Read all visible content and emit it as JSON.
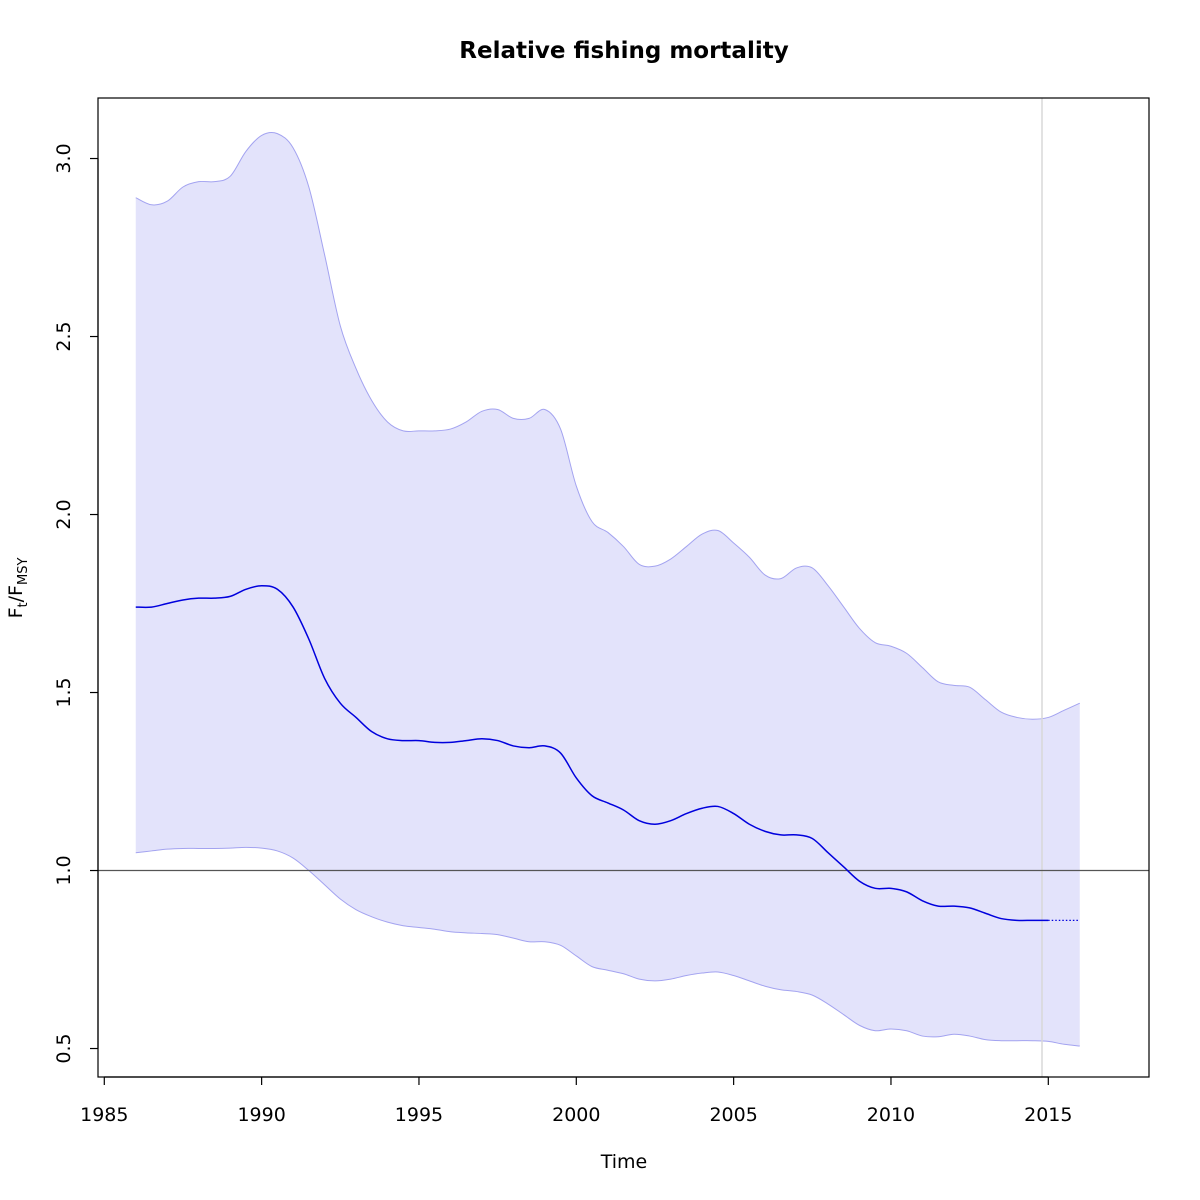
{
  "chart_data": {
    "type": "line",
    "title": "Relative fishing mortality",
    "xlabel": "Time",
    "ylabel": {
      "main": "F",
      "sub1": "t",
      "slash": "/F",
      "sub2": "MSY"
    },
    "xlim": [
      1984.8,
      2018.2
    ],
    "ylim": [
      0.42,
      3.17
    ],
    "xticks": [
      1985,
      1990,
      1995,
      2000,
      2005,
      2010,
      2015
    ],
    "xtick_labels": [
      "1985",
      "1990",
      "1995",
      "2000",
      "2005",
      "2010",
      "2015"
    ],
    "yticks": [
      0.5,
      1.0,
      1.5,
      2.0,
      2.5,
      3.0
    ],
    "ytick_labels": [
      "0.5",
      "1.0",
      "1.5",
      "2.0",
      "2.5",
      "3.0"
    ],
    "reference_hline": 1.0,
    "reference_vline": 2014.8,
    "colors": {
      "line": "#0000dd",
      "band_fill": "#e3e3fb",
      "band_edge": "#a3a3f0",
      "hline": "#555555",
      "vline": "#d8d8d8"
    },
    "series": [
      {
        "role": "estimate",
        "x": [
          1986.0,
          1986.5,
          1987.0,
          1987.5,
          1988.0,
          1988.5,
          1989.0,
          1989.5,
          1990.0,
          1990.5,
          1991.0,
          1991.5,
          1992.0,
          1992.5,
          1993.0,
          1993.5,
          1994.0,
          1994.5,
          1995.0,
          1995.5,
          1996.0,
          1996.5,
          1997.0,
          1997.5,
          1998.0,
          1998.5,
          1999.0,
          1999.5,
          2000.0,
          2000.5,
          2001.0,
          2001.5,
          2002.0,
          2002.5,
          2003.0,
          2003.5,
          2004.0,
          2004.5,
          2005.0,
          2005.5,
          2006.0,
          2006.5,
          2007.0,
          2007.5,
          2008.0,
          2008.5,
          2009.0,
          2009.5,
          2010.0,
          2010.5,
          2011.0,
          2011.5,
          2012.0,
          2012.5,
          2013.0,
          2013.5,
          2014.0,
          2014.5,
          2015.0
        ],
        "y": [
          1.74,
          1.74,
          1.75,
          1.76,
          1.765,
          1.765,
          1.77,
          1.79,
          1.8,
          1.79,
          1.74,
          1.65,
          1.54,
          1.47,
          1.43,
          1.39,
          1.37,
          1.365,
          1.365,
          1.36,
          1.36,
          1.365,
          1.37,
          1.365,
          1.35,
          1.345,
          1.35,
          1.33,
          1.26,
          1.21,
          1.19,
          1.17,
          1.14,
          1.13,
          1.14,
          1.16,
          1.175,
          1.18,
          1.16,
          1.13,
          1.11,
          1.1,
          1.1,
          1.09,
          1.05,
          1.01,
          0.97,
          0.95,
          0.95,
          0.94,
          0.915,
          0.9,
          0.9,
          0.895,
          0.88,
          0.865,
          0.86,
          0.86,
          0.86
        ]
      },
      {
        "role": "prediction",
        "x": [
          2015.0,
          2016.0
        ],
        "y": [
          0.86,
          0.86
        ]
      },
      {
        "role": "upper_ci",
        "x": [
          1986.0,
          1986.5,
          1987.0,
          1987.5,
          1988.0,
          1988.5,
          1989.0,
          1989.5,
          1990.0,
          1990.5,
          1991.0,
          1991.5,
          1992.0,
          1992.5,
          1993.0,
          1993.5,
          1994.0,
          1994.5,
          1995.0,
          1995.5,
          1996.0,
          1996.5,
          1997.0,
          1997.5,
          1998.0,
          1998.5,
          1999.0,
          1999.5,
          2000.0,
          2000.5,
          2001.0,
          2001.5,
          2002.0,
          2002.5,
          2003.0,
          2003.5,
          2004.0,
          2004.5,
          2005.0,
          2005.5,
          2006.0,
          2006.5,
          2007.0,
          2007.5,
          2008.0,
          2008.5,
          2009.0,
          2009.5,
          2010.0,
          2010.5,
          2011.0,
          2011.5,
          2012.0,
          2012.5,
          2013.0,
          2013.5,
          2014.0,
          2014.5,
          2015.0,
          2015.5,
          2016.0
        ],
        "y": [
          2.89,
          2.87,
          2.88,
          2.92,
          2.935,
          2.935,
          2.95,
          3.02,
          3.065,
          3.07,
          3.03,
          2.92,
          2.73,
          2.53,
          2.41,
          2.32,
          2.26,
          2.235,
          2.235,
          2.235,
          2.24,
          2.26,
          2.29,
          2.295,
          2.27,
          2.27,
          2.295,
          2.24,
          2.08,
          1.98,
          1.95,
          1.91,
          1.86,
          1.855,
          1.875,
          1.91,
          1.945,
          1.955,
          1.92,
          1.88,
          1.83,
          1.82,
          1.85,
          1.85,
          1.8,
          1.74,
          1.68,
          1.64,
          1.63,
          1.61,
          1.57,
          1.53,
          1.52,
          1.515,
          1.48,
          1.445,
          1.43,
          1.425,
          1.43,
          1.45,
          1.47
        ]
      },
      {
        "role": "lower_ci",
        "x": [
          1986.0,
          1986.5,
          1987.0,
          1987.5,
          1988.0,
          1988.5,
          1989.0,
          1989.5,
          1990.0,
          1990.5,
          1991.0,
          1991.5,
          1992.0,
          1992.5,
          1993.0,
          1993.5,
          1994.0,
          1994.5,
          1995.0,
          1995.5,
          1996.0,
          1996.5,
          1997.0,
          1997.5,
          1998.0,
          1998.5,
          1999.0,
          1999.5,
          2000.0,
          2000.5,
          2001.0,
          2001.5,
          2002.0,
          2002.5,
          2003.0,
          2003.5,
          2004.0,
          2004.5,
          2005.0,
          2005.5,
          2006.0,
          2006.5,
          2007.0,
          2007.5,
          2008.0,
          2008.5,
          2009.0,
          2009.5,
          2010.0,
          2010.5,
          2011.0,
          2011.5,
          2012.0,
          2012.5,
          2013.0,
          2013.5,
          2014.0,
          2014.5,
          2015.0,
          2015.5,
          2016.0
        ],
        "y": [
          1.05,
          1.055,
          1.06,
          1.062,
          1.062,
          1.062,
          1.063,
          1.065,
          1.063,
          1.055,
          1.035,
          1.0,
          0.96,
          0.92,
          0.89,
          0.87,
          0.855,
          0.845,
          0.84,
          0.835,
          0.828,
          0.825,
          0.823,
          0.82,
          0.81,
          0.8,
          0.8,
          0.79,
          0.76,
          0.73,
          0.72,
          0.71,
          0.695,
          0.69,
          0.695,
          0.705,
          0.712,
          0.715,
          0.705,
          0.69,
          0.675,
          0.665,
          0.66,
          0.65,
          0.625,
          0.595,
          0.565,
          0.55,
          0.555,
          0.55,
          0.535,
          0.533,
          0.54,
          0.535,
          0.525,
          0.522,
          0.522,
          0.522,
          0.52,
          0.512,
          0.507
        ]
      }
    ]
  }
}
